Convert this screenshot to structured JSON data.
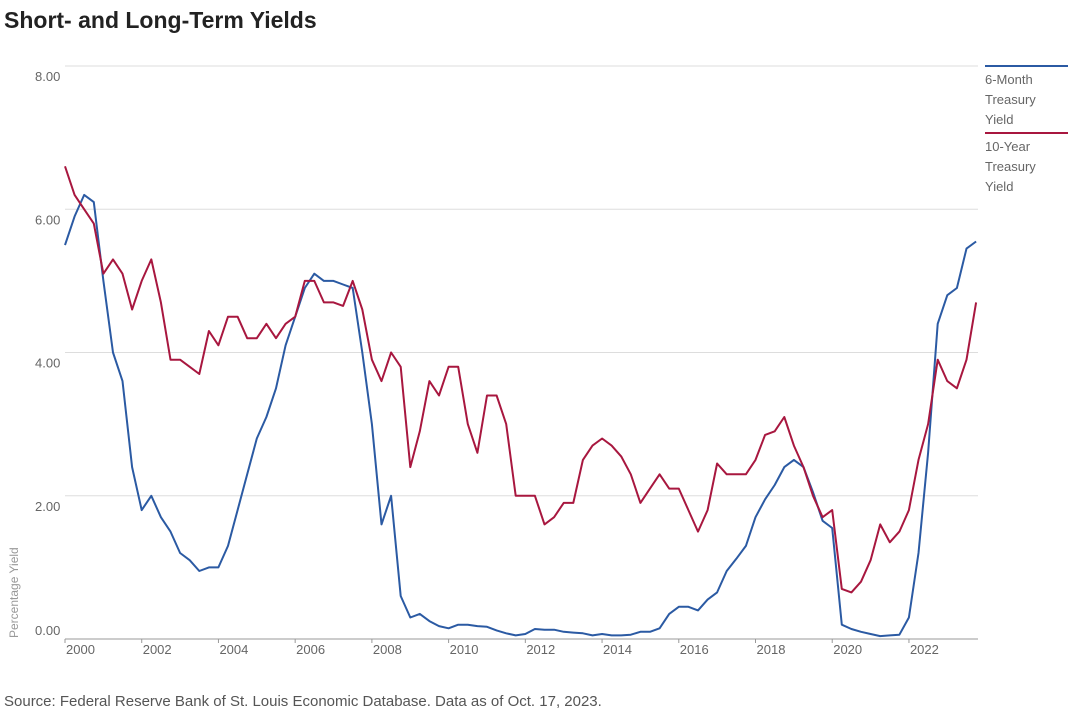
{
  "chart_data": {
    "type": "line",
    "title": "Short- and Long-Term Yields",
    "y_label": "Percentage Yield",
    "source": "Source: Federal Reserve Bank of St. Louis Economic Database. Data as of Oct. 17, 2023.",
    "x": [
      2000,
      2000.25,
      2000.5,
      2000.75,
      2001,
      2001.25,
      2001.5,
      2001.75,
      2002,
      2002.25,
      2002.5,
      2002.75,
      2003,
      2003.25,
      2003.5,
      2003.75,
      2004,
      2004.25,
      2004.5,
      2004.75,
      2005,
      2005.25,
      2005.5,
      2005.75,
      2006,
      2006.25,
      2006.5,
      2006.75,
      2007,
      2007.25,
      2007.5,
      2007.75,
      2008,
      2008.25,
      2008.5,
      2008.75,
      2009,
      2009.25,
      2009.5,
      2009.75,
      2010,
      2010.25,
      2010.5,
      2010.75,
      2011,
      2011.25,
      2011.5,
      2011.75,
      2012,
      2012.25,
      2012.5,
      2012.75,
      2013,
      2013.25,
      2013.5,
      2013.75,
      2014,
      2014.25,
      2014.5,
      2014.75,
      2015,
      2015.25,
      2015.5,
      2015.75,
      2016,
      2016.25,
      2016.5,
      2016.75,
      2017,
      2017.25,
      2017.5,
      2017.75,
      2018,
      2018.25,
      2018.5,
      2018.75,
      2019,
      2019.25,
      2019.5,
      2019.75,
      2020,
      2020.25,
      2020.5,
      2020.75,
      2021,
      2021.25,
      2021.5,
      2021.75,
      2022,
      2022.25,
      2022.5,
      2022.75,
      2023,
      2023.25,
      2023.5,
      2023.75
    ],
    "series": [
      {
        "name": "6-Month Treasury Yield",
        "color": "#2b5aa3",
        "values": [
          5.5,
          5.9,
          6.2,
          6.1,
          5.0,
          4.0,
          3.6,
          2.4,
          1.8,
          2.0,
          1.7,
          1.5,
          1.2,
          1.1,
          0.95,
          1.0,
          1.0,
          1.3,
          1.8,
          2.3,
          2.8,
          3.1,
          3.5,
          4.1,
          4.5,
          4.9,
          5.1,
          5.0,
          5.0,
          4.95,
          4.9,
          4.0,
          3.0,
          1.6,
          2.0,
          0.6,
          0.3,
          0.35,
          0.25,
          0.18,
          0.15,
          0.2,
          0.2,
          0.18,
          0.17,
          0.12,
          0.08,
          0.05,
          0.07,
          0.14,
          0.13,
          0.13,
          0.1,
          0.09,
          0.08,
          0.05,
          0.07,
          0.05,
          0.05,
          0.06,
          0.1,
          0.1,
          0.15,
          0.35,
          0.45,
          0.45,
          0.4,
          0.55,
          0.65,
          0.95,
          1.12,
          1.3,
          1.7,
          1.95,
          2.15,
          2.4,
          2.5,
          2.4,
          2.05,
          1.65,
          1.55,
          0.2,
          0.14,
          0.1,
          0.07,
          0.04,
          0.05,
          0.06,
          0.3,
          1.2,
          2.6,
          4.4,
          4.8,
          4.9,
          5.45,
          5.55
        ]
      },
      {
        "name": "10-Year Treasury Yield",
        "color": "#a8173f",
        "values": [
          6.6,
          6.2,
          6.0,
          5.8,
          5.1,
          5.3,
          5.1,
          4.6,
          5.0,
          5.3,
          4.7,
          3.9,
          3.9,
          3.8,
          3.7,
          4.3,
          4.1,
          4.5,
          4.5,
          4.2,
          4.2,
          4.4,
          4.2,
          4.4,
          4.5,
          5.0,
          5.0,
          4.7,
          4.7,
          4.65,
          5.0,
          4.6,
          3.9,
          3.6,
          4.0,
          3.8,
          2.4,
          2.9,
          3.6,
          3.4,
          3.8,
          3.8,
          3.0,
          2.6,
          3.4,
          3.4,
          3.0,
          2.0,
          2.0,
          2.0,
          1.6,
          1.7,
          1.9,
          1.9,
          2.5,
          2.7,
          2.8,
          2.7,
          2.55,
          2.3,
          1.9,
          2.1,
          2.3,
          2.1,
          2.1,
          1.8,
          1.5,
          1.8,
          2.45,
          2.3,
          2.3,
          2.3,
          2.5,
          2.85,
          2.9,
          3.1,
          2.7,
          2.4,
          2.0,
          1.7,
          1.8,
          0.7,
          0.65,
          0.8,
          1.1,
          1.6,
          1.35,
          1.5,
          1.8,
          2.5,
          3.0,
          3.9,
          3.6,
          3.5,
          3.9,
          4.7
        ]
      }
    ],
    "xlim": [
      2000,
      2023.8
    ],
    "xticks": [
      2000,
      2002,
      2004,
      2006,
      2008,
      2010,
      2012,
      2014,
      2016,
      2018,
      2020,
      2022
    ],
    "ylim": [
      0,
      8
    ],
    "yticks": [
      {
        "value": 0,
        "label": "0.00"
      },
      {
        "value": 2,
        "label": "2.00"
      },
      {
        "value": 4,
        "label": "4.00"
      },
      {
        "value": 6,
        "label": "6.00"
      },
      {
        "value": 8,
        "label": "8.00"
      }
    ],
    "grid": true,
    "legend": "right"
  }
}
